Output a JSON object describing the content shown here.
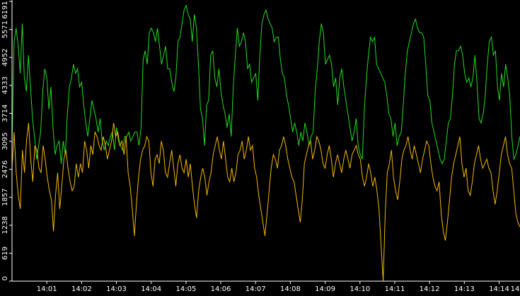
{
  "chart_data": {
    "type": "line",
    "title": "",
    "xlabel": "",
    "ylabel": "",
    "ylim": [
      0,
      6191
    ],
    "y_ticks": [
      0,
      619,
      1238,
      1857,
      2476,
      3095,
      3714,
      4333,
      4952,
      5571,
      6191
    ],
    "x_ticks": [
      "14:01",
      "14:02",
      "14:03",
      "14:04",
      "14:05",
      "14:06",
      "14:07",
      "14:08",
      "14:09",
      "14:10",
      "14:11",
      "14:12",
      "14:13",
      "14:14",
      "14"
    ],
    "xlim_minutes": [
      0.0,
      14.6
    ],
    "grid": false,
    "legend": "none",
    "background": "#000000",
    "axis_color": "#ffffff",
    "series": [
      {
        "color": "#22dd22",
        "values": [
          3000,
          5300,
          5600,
          5200,
          4600,
          5700,
          4500,
          4200,
          5000,
          4300,
          3600,
          3200,
          2700,
          3000,
          3300,
          4200,
          4700,
          4500,
          3800,
          4300,
          3400,
          2800,
          3000,
          3100,
          2600,
          3100,
          2800,
          3700,
          4300,
          4500,
          4800,
          4600,
          4700,
          4300,
          4400,
          3900,
          3500,
          3200,
          3600,
          4000,
          3800,
          3600,
          3300,
          3600,
          3100,
          2900,
          3100,
          3000,
          3200,
          3300,
          2900,
          3400,
          3100,
          3000,
          2900,
          3200,
          3200,
          3300,
          3100,
          3200,
          3300,
          3300,
          3000,
          3400,
          4900,
          5100,
          4800,
          5500,
          5600,
          5500,
          5300,
          5600,
          5200,
          4800,
          5000,
          5200,
          4700,
          4700,
          4400,
          4200,
          4500,
          5300,
          5400,
          5700,
          6000,
          6100,
          5900,
          5800,
          5300,
          5900,
          5600,
          4800,
          3800,
          3600,
          3000,
          3900,
          4000,
          5000,
          5100,
          4500,
          4300,
          4700,
          4200,
          3900,
          3700,
          3400,
          3700,
          3200,
          4300,
          5000,
          5600,
          5200,
          5300,
          5500,
          5300,
          4700,
          4800,
          4400,
          4500,
          4600,
          4000,
          5000,
          5700,
          5900,
          6000,
          5800,
          5700,
          5600,
          5300,
          5400,
          5400,
          4900,
          4600,
          4500,
          4100,
          3900,
          3600,
          3300,
          3500,
          3300,
          3000,
          3300,
          3100,
          3500,
          3300,
          3000,
          3200,
          3300,
          4200,
          4700,
          5300,
          5700,
          5500,
          4800,
          4900,
          5000,
          4800,
          4300,
          4500,
          3900,
          4500,
          4700,
          4300,
          4000,
          3700,
          3400,
          3100,
          3300,
          3600,
          3000,
          2800,
          2700,
          3800,
          4500,
          5000,
          5400,
          5300,
          5400,
          4800,
          4700,
          4600,
          4500,
          4400,
          4100,
          3700,
          3600,
          3200,
          3500,
          3000,
          3200,
          3300,
          3900,
          4600,
          5100,
          5300,
          5500,
          5700,
          5800,
          5600,
          5500,
          5500,
          5400,
          4800,
          4100,
          4000,
          3500,
          3300,
          3100,
          2900,
          2700,
          2600,
          2700,
          3100,
          3500,
          3600,
          4100,
          4800,
          5100,
          5100,
          5200,
          5000,
          4600,
          4400,
          4500,
          4300,
          4500,
          5000,
          4400,
          3600,
          3500,
          3700,
          4100,
          4800,
          5300,
          5400,
          5000,
          5100,
          4300,
          4000,
          4600,
          4300,
          4800,
          4500,
          4100,
          3200,
          2700,
          2800,
          3000,
          3200
        ]
      },
      {
        "color": "#f5b800",
        "values": [
          2500,
          3300,
          2400,
          1900,
          1600,
          2900,
          2400,
          3100,
          3500,
          2700,
          2200,
          3000,
          2900,
          2500,
          2400,
          3000,
          2700,
          2300,
          2000,
          1800,
          1100,
          1900,
          2400,
          1600,
          2100,
          2700,
          2900,
          2500,
          2200,
          2000,
          2100,
          2600,
          2300,
          2600,
          2400,
          3100,
          2900,
          2500,
          3000,
          2800,
          3300,
          3200,
          3000,
          2900,
          3200,
          3000,
          2700,
          2900,
          3100,
          3500,
          3200,
          3300,
          3000,
          3100,
          2800,
          3200,
          2400,
          2100,
          1600,
          1000,
          1700,
          2300,
          2700,
          2900,
          3000,
          3200,
          3100,
          2400,
          2100,
          2700,
          2800,
          2600,
          3100,
          2900,
          2400,
          2300,
          2600,
          2900,
          2500,
          2100,
          2600,
          2800,
          2500,
          2400,
          2700,
          2300,
          2600,
          2100,
          1700,
          1400,
          2000,
          2300,
          2500,
          2300,
          1900,
          2200,
          2400,
          2800,
          3000,
          3200,
          2900,
          2700,
          3100,
          2700,
          2300,
          2200,
          2500,
          2200,
          2400,
          2800,
          2900,
          3100,
          2700,
          2900,
          3200,
          2900,
          3000,
          2500,
          2300,
          1900,
          1600,
          1300,
          1000,
          1500,
          2000,
          2500,
          2800,
          2700,
          2500,
          2900,
          3000,
          3200,
          3000,
          2700,
          2500,
          2300,
          2200,
          1900,
          1600,
          1300,
          1800,
          2600,
          2800,
          3000,
          3100,
          2700,
          2900,
          3200,
          3100,
          2900,
          2600,
          2500,
          2800,
          3000,
          2700,
          2300,
          2600,
          2800,
          2600,
          2400,
          2700,
          2900,
          2700,
          2500,
          2800,
          2900,
          3000,
          2800,
          2700,
          2300,
          2100,
          2300,
          2600,
          2400,
          2100,
          2300,
          2000,
          1600,
          800,
          0,
          1500,
          2400,
          2600,
          2900,
          2300,
          2000,
          1800,
          2200,
          2700,
          2900,
          3000,
          3200,
          2900,
          2700,
          3000,
          2800,
          2600,
          2400,
          2700,
          2900,
          3100,
          3000,
          2600,
          2300,
          2100,
          2000,
          2200,
          1500,
          1100,
          900,
          1300,
          1800,
          2300,
          2600,
          2800,
          3000,
          3200,
          2600,
          2300,
          2500,
          2000,
          1900,
          2200,
          2600,
          2800,
          3000,
          2700,
          2500,
          2600,
          2700,
          2500,
          2400,
          2000,
          1700,
          2000,
          2400,
          2800,
          3000,
          3200,
          2800,
          2600,
          2500,
          2000,
          1500,
          1300,
          1200
        ]
      }
    ]
  }
}
